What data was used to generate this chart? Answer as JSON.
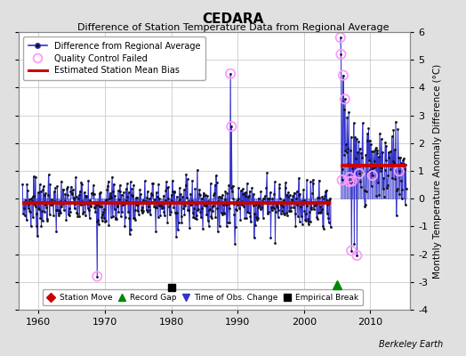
{
  "title": "CEDARA",
  "subtitle": "Difference of Station Temperature Data from Regional Average",
  "ylabel": "Monthly Temperature Anomaly Difference (°C)",
  "credit": "Berkeley Earth",
  "xlim": [
    1957,
    2016
  ],
  "ylim": [
    -4,
    6
  ],
  "yticks": [
    -4,
    -3,
    -2,
    -1,
    0,
    1,
    2,
    3,
    4,
    5,
    6
  ],
  "xticks": [
    1960,
    1970,
    1980,
    1990,
    2000,
    2010
  ],
  "bg_color": "#e0e0e0",
  "plot_bg_color": "#ffffff",
  "grid_color": "#c0c0c0",
  "line_color": "#3333cc",
  "dot_color": "#111111",
  "qc_fail_color": "#ff99ff",
  "bias_color": "#cc0000",
  "bias_value_early": -0.15,
  "bias_value_late": 1.2,
  "bias_start_early": 1957.5,
  "bias_end_early": 2004.0,
  "bias_start_late": 2005.5,
  "bias_end_late": 2015.5,
  "empirical_break_x": 1980.0,
  "empirical_break_y": -3.2,
  "record_gap_x": 2005.0,
  "record_gap_y": -3.1,
  "seed": 7
}
